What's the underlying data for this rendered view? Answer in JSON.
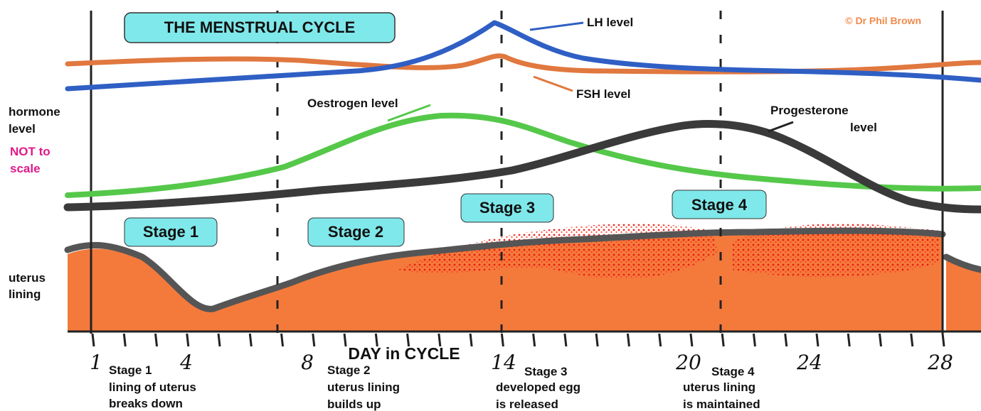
{
  "title": "THE MENSTRUAL CYCLE",
  "credit": "© Dr Phil Brown",
  "hormone_label": [
    "hormone",
    "level"
  ],
  "scale_note": [
    "NOT to",
    "scale"
  ],
  "uterus_label": [
    "uterus",
    "lining"
  ],
  "curve_labels": {
    "lh": "LH level",
    "fsh": "FSH level",
    "oestrogen": "Oestrogen level",
    "progesterone": [
      "Progesterone",
      "level"
    ]
  },
  "stages": [
    "Stage 1",
    "Stage 2",
    "Stage 3",
    "Stage 4"
  ],
  "axis_label": "DAY in CYCLE",
  "days": [
    "1",
    "4",
    "8",
    "14",
    "20",
    "24",
    "28"
  ],
  "descriptions": [
    [
      "Stage 1",
      "lining of uterus",
      "breaks down"
    ],
    [
      "Stage 2",
      "uterus lining",
      "builds up"
    ],
    [
      "Stage 3",
      "developed egg",
      "is released"
    ],
    [
      "Stage 4",
      "uterus lining",
      "is maintained"
    ]
  ]
}
